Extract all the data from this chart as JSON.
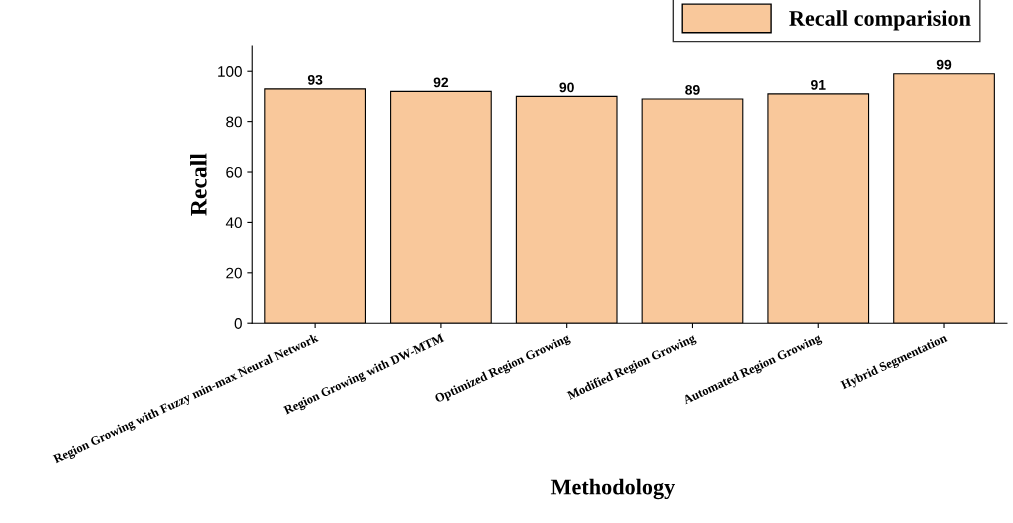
{
  "chart_data": {
    "type": "bar",
    "xlabel": "Methodology",
    "ylabel": "Recall",
    "categories": [
      "Region Growing with Fuzzy min-max Neural Network",
      "Region Growing with DW-MTM",
      "Optimized Region Growing",
      "Modified Region Growing",
      "Automated Region Growing",
      "Hybrid Segmentation"
    ],
    "series": [
      {
        "name": "Recall comparision",
        "color": "#f9c89b",
        "values": [
          93,
          92,
          90,
          89,
          91,
          99
        ]
      }
    ],
    "ylim": [
      0,
      110
    ],
    "yticks": [
      0,
      20,
      40,
      60,
      80,
      100
    ],
    "data_labels": true,
    "legend": "top right",
    "grid": false
  }
}
